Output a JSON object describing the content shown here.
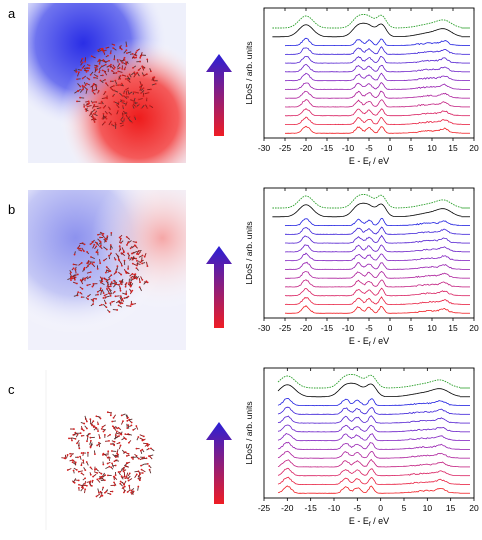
{
  "figure": {
    "panels": [
      {
        "label": "a",
        "ylabel": "LDoS / arb. units",
        "xlabel": "E - E",
        "xlabel_sub": "f",
        "xlabel_unit": " / eV",
        "ticks": [
          "-30",
          "-25",
          "-20",
          "-15",
          "-10",
          "-5",
          "0",
          "5",
          "10",
          "15",
          "20"
        ],
        "arrow_color_top": "#2a1fd6",
        "arrow_color_bottom": "#ef1d24"
      },
      {
        "label": "b",
        "ylabel": "LDoS / arb. units",
        "xlabel": "E - E",
        "xlabel_sub": "f",
        "xlabel_unit": " / eV",
        "ticks": [
          "-30",
          "-25",
          "-20",
          "-15",
          "-10",
          "-5",
          "0",
          "5",
          "10",
          "15",
          "20"
        ],
        "arrow_color_top": "#2a1fd6",
        "arrow_color_bottom": "#ef1d24"
      },
      {
        "label": "c",
        "ylabel": "LDoS / arb. units",
        "xlabel": "E - E",
        "xlabel_sub": "f",
        "xlabel_unit": " / eV",
        "ticks": [
          "-25",
          "-20",
          "-15",
          "-10",
          "-5",
          "0",
          "5",
          "10",
          "15",
          "20"
        ],
        "arrow_color_top": "#2a1fd6",
        "arrow_color_bottom": "#ef1d24"
      }
    ]
  },
  "chart_data": [
    {
      "type": "line",
      "xlim": [
        -30,
        20
      ],
      "series_count": 13,
      "colors": [
        "#2ca02c",
        "#000000",
        "#1f1fe0",
        "#3a1fd8",
        "#521fd0",
        "#6a1fc8",
        "#801fc0",
        "#961fb0",
        "#ac1f9c",
        "#c21f80",
        "#d81f60",
        "#e81f40",
        "#f01f24"
      ]
    },
    {
      "type": "line",
      "xlim": [
        -30,
        20
      ],
      "series_count": 13,
      "colors": [
        "#2ca02c",
        "#000000",
        "#1f1fe0",
        "#3a1fd8",
        "#521fd0",
        "#6a1fc8",
        "#801fc0",
        "#961fb0",
        "#ac1f9c",
        "#c21f80",
        "#d81f60",
        "#e81f40",
        "#f01f24"
      ]
    },
    {
      "type": "line",
      "xlim": [
        -25,
        20
      ],
      "series_count": 13,
      "colors": [
        "#2ca02c",
        "#000000",
        "#1f1fe0",
        "#3a1fd8",
        "#521fd0",
        "#6a1fc8",
        "#801fc0",
        "#961fb0",
        "#ac1f9c",
        "#c21f80",
        "#d81f60",
        "#e81f40",
        "#f01f24"
      ]
    }
  ]
}
